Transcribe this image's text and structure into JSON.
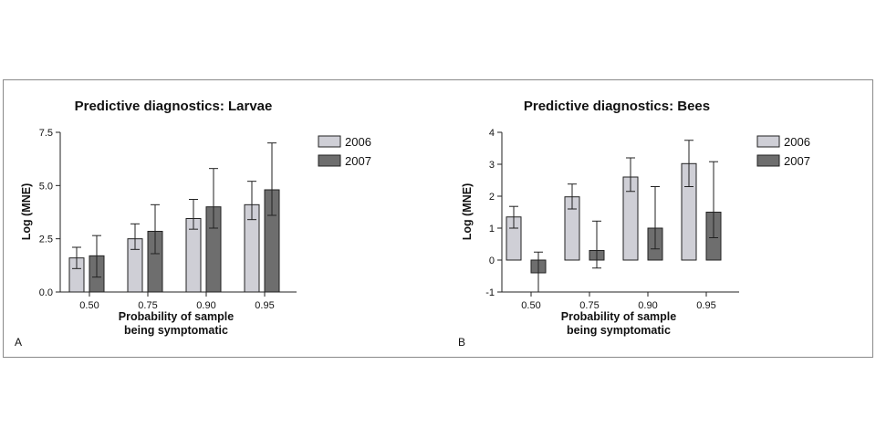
{
  "colors": {
    "series_2006": "#cfcfd6",
    "series_2007": "#6e6e6e",
    "stroke": "#222222",
    "frame": "#8a8a8a"
  },
  "chart_data": [
    {
      "type": "bar",
      "panel_label": "A",
      "title": "Predictive diagnostics: Larvae",
      "xlabel": "Probability of sample being symptomatic",
      "ylabel": "Log (MNE)",
      "categories": [
        "0.50",
        "0.75",
        "0.90",
        "0.95"
      ],
      "ylim": [
        0,
        7.5
      ],
      "yticks": [
        0,
        2.5,
        5,
        7.5
      ],
      "ytick_labels": [
        "0.0",
        "2.5",
        "5.0",
        "7.5"
      ],
      "legend_position": "top-right",
      "series": [
        {
          "name": "2006",
          "values": [
            1.6,
            2.5,
            3.45,
            4.1
          ],
          "err_low": [
            1.1,
            2.0,
            2.95,
            3.4
          ],
          "err_high": [
            2.1,
            3.2,
            4.35,
            5.2
          ]
        },
        {
          "name": "2007",
          "values": [
            1.7,
            2.85,
            4.0,
            4.8
          ],
          "err_low": [
            0.7,
            1.8,
            3.0,
            3.6
          ],
          "err_high": [
            2.65,
            4.1,
            5.8,
            7.0
          ]
        }
      ]
    },
    {
      "type": "bar",
      "panel_label": "B",
      "title": "Predictive diagnostics: Bees",
      "xlabel": "Probability of sample being symptomatic",
      "ylabel": "Log (MNE)",
      "categories": [
        "0.50",
        "0.75",
        "0.90",
        "0.95"
      ],
      "ylim": [
        -1,
        4
      ],
      "yticks": [
        -1,
        0,
        1,
        2,
        3,
        4
      ],
      "ytick_labels": [
        "-1",
        "0",
        "1",
        "2",
        "3",
        "4"
      ],
      "legend_position": "top-right",
      "series": [
        {
          "name": "2006",
          "values": [
            1.35,
            1.98,
            2.6,
            3.02
          ],
          "err_low": [
            1.0,
            1.6,
            2.15,
            2.3
          ],
          "err_high": [
            1.68,
            2.38,
            3.2,
            3.75
          ]
        },
        {
          "name": "2007",
          "values": [
            -0.4,
            0.3,
            1.0,
            1.5
          ],
          "err_low": [
            -1.0,
            -0.25,
            0.35,
            0.7
          ],
          "err_high": [
            0.25,
            1.22,
            2.3,
            3.08
          ]
        }
      ]
    }
  ]
}
